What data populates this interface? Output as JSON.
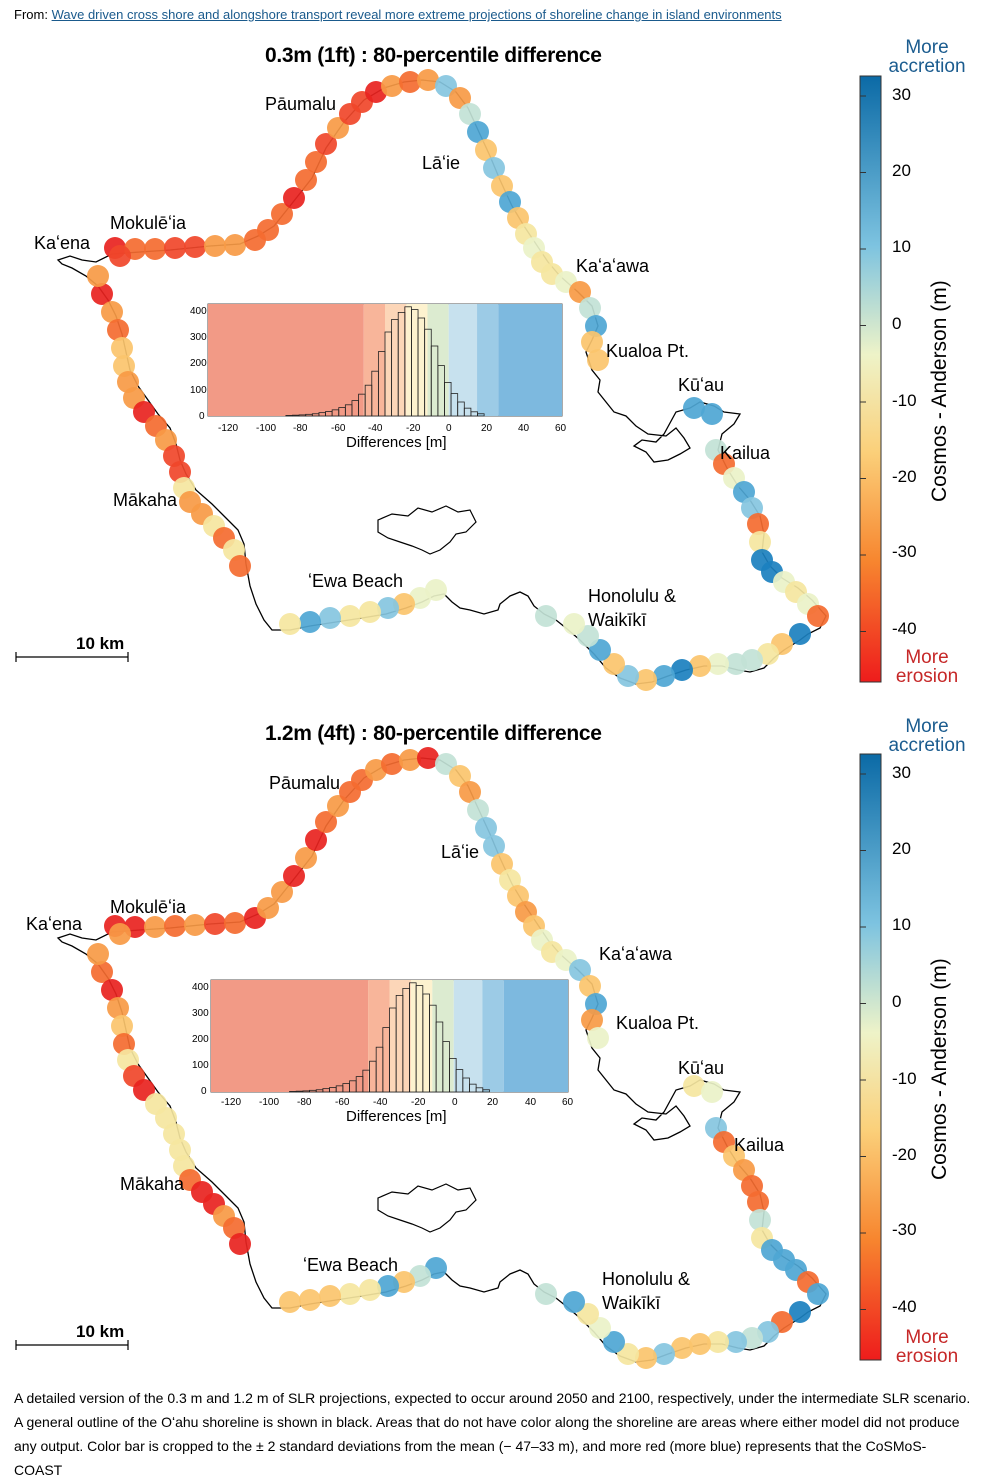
{
  "source": {
    "prefix": "From:",
    "link": "Wave driven cross shore and alongshore transport reveal more extreme projections of shoreline change in island environments"
  },
  "colors": {
    "erosion": "#e8231f",
    "accretion": "#1478b8",
    "coastline": "#000000",
    "more_label_blue": "#1b5c8f",
    "more_label_red": "#c62828"
  },
  "panels": [
    {
      "title": "0.3m (1ft) : 80-percentile difference",
      "places": {
        "paumalu": "Pāumalu",
        "laie": "Lāʻie",
        "mokuleia": "Mokulēʻia",
        "kaena": "Kaʻena",
        "kaaawa": "Kaʻaʻawa",
        "kualoa": "Kualoa Pt.",
        "kuau": "Kūʻau",
        "kailua": "Kailua",
        "makaha": "Mākaha",
        "ewa": "ʻEwa Beach",
        "honolulu1": "Honolulu &",
        "honolulu2": "Waikīkī"
      },
      "scale_label": "10 km",
      "colorbar": {
        "top_label": [
          "More",
          "accretion"
        ],
        "bottom_label": [
          "More",
          "erosion"
        ],
        "ticks": [
          "30",
          "20",
          "10",
          "0",
          "-10",
          "-20",
          "-30",
          "-40"
        ],
        "axis_label": "Cosmos - Anderson (m)"
      },
      "histogram": {
        "x_ticks": [
          "-120",
          "-100",
          "-80",
          "-60",
          "-40",
          "-20",
          "0",
          "20",
          "40",
          "60"
        ],
        "y_ticks": [
          "400",
          "300",
          "200",
          "100",
          "0"
        ],
        "xlabel": "Differences [m]"
      }
    },
    {
      "title": "1.2m (4ft) : 80-percentile difference",
      "places": {
        "paumalu": "Pāumalu",
        "laie": "Lāʻie",
        "mokuleia": "Mokulēʻia",
        "kaena": "Kaʻena",
        "kaaawa": "Kaʻaʻawa",
        "kualoa": "Kualoa Pt.",
        "kuau": "Kūʻau",
        "kailua": "Kailua",
        "makaha": "Mākaha",
        "ewa": "ʻEwa Beach",
        "honolulu1": "Honolulu &",
        "honolulu2": "Waikīkī"
      },
      "scale_label": "10 km",
      "colorbar": {
        "top_label": [
          "More",
          "accretion"
        ],
        "bottom_label": [
          "More",
          "erosion"
        ],
        "ticks": [
          "30",
          "20",
          "10",
          "0",
          "-10",
          "-20",
          "-30",
          "-40"
        ],
        "axis_label": "Cosmos - Anderson (m)"
      },
      "histogram": {
        "x_ticks": [
          "-120",
          "-100",
          "-80",
          "-60",
          "-40",
          "-20",
          "0",
          "20",
          "40",
          "60"
        ],
        "y_ticks": [
          "400",
          "300",
          "200",
          "100",
          "0"
        ],
        "xlabel": "Differences [m]"
      }
    }
  ],
  "caption": "A detailed version of the 0.3 m and 1.2 m of SLR projections, expected to occur around 2050 and 2100, respectively, under the intermediate SLR scenario. A general outline of the Oʻahu shoreline is shown in black. Areas that do not have color along the shoreline are areas where either model did not produce any output. Color bar is cropped to the ± 2 standard deviations from the mean (− 47–33 m), and more red (more blue) represents that the CoSMoS-COAST"
}
